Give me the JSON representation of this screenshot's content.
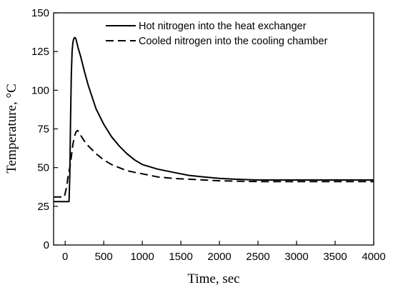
{
  "chart_data": {
    "type": "line",
    "xlabel": "Time, sec",
    "ylabel": "Temperature, °C",
    "xlim": [
      -150,
      4000
    ],
    "ylim": [
      0,
      150
    ],
    "x_ticks": [
      0,
      500,
      1000,
      1500,
      2000,
      2500,
      3000,
      3500,
      4000
    ],
    "y_ticks": [
      0,
      25,
      50,
      75,
      100,
      125,
      150
    ],
    "legend_position": "top-right",
    "series": [
      {
        "name": "Hot nitrogen into the heat exchanger",
        "style": "solid",
        "x": [
          -150,
          0,
          30,
          50,
          60,
          70,
          80,
          90,
          100,
          110,
          120,
          130,
          140,
          150,
          170,
          200,
          250,
          300,
          400,
          500,
          600,
          700,
          800,
          900,
          1000,
          1200,
          1400,
          1600,
          1800,
          2000,
          2200,
          2500,
          3000,
          3500,
          4000
        ],
        "values": [
          28,
          28,
          28,
          28,
          45,
          80,
          110,
          125,
          131,
          133,
          134,
          134,
          133,
          131,
          127,
          122,
          112,
          103,
          88,
          78,
          70,
          64,
          59,
          55,
          52,
          49,
          47,
          45,
          44,
          43,
          42.5,
          42,
          42,
          42,
          42
        ]
      },
      {
        "name": "Cooled nitrogen into the cooling chamber",
        "style": "dashed",
        "x": [
          -150,
          -10,
          20,
          40,
          60,
          80,
          100,
          120,
          140,
          160,
          180,
          200,
          250,
          300,
          400,
          500,
          600,
          700,
          800,
          900,
          1000,
          1200,
          1400,
          1600,
          1800,
          2000,
          2500,
          3000,
          3500,
          4000
        ],
        "values": [
          31,
          31,
          38,
          45,
          50,
          57,
          65,
          70,
          73,
          74,
          73,
          71,
          67,
          64,
          59,
          55,
          52,
          50,
          48,
          47,
          46,
          44,
          43,
          42.5,
          42,
          41.5,
          41,
          41,
          41,
          41
        ]
      }
    ]
  }
}
